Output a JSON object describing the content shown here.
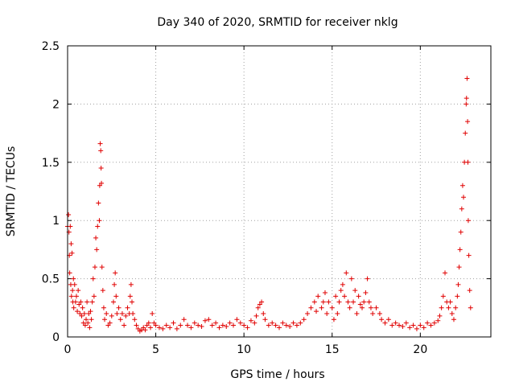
{
  "chart_data": {
    "type": "scatter",
    "title": "Day 340 of 2020, SRMTID for receiver nklg",
    "xlabel": "GPS time / hours",
    "ylabel": "SRMTID / TECUs",
    "xlim": [
      0,
      24
    ],
    "ylim": [
      0,
      2.5
    ],
    "xticks": [
      0,
      5,
      10,
      15,
      20
    ],
    "xtick_labels": [
      "0",
      "5",
      "10",
      "15",
      "20"
    ],
    "yticks": [
      0,
      0.5,
      1,
      1.5,
      2,
      2.5
    ],
    "ytick_labels": [
      "0",
      "0.5",
      "1",
      "1.5",
      "2",
      "2.5"
    ],
    "grid": true,
    "marker": "+",
    "series": [
      {
        "name": "SRMTID",
        "color": "#e00000",
        "points": [
          [
            0.0,
            0.95
          ],
          [
            0.05,
            1.05
          ],
          [
            0.08,
            0.9
          ],
          [
            0.1,
            0.7
          ],
          [
            0.12,
            0.55
          ],
          [
            0.15,
            0.95
          ],
          [
            0.18,
            0.45
          ],
          [
            0.2,
            0.8
          ],
          [
            0.22,
            0.35
          ],
          [
            0.25,
            0.72
          ],
          [
            0.28,
            0.4
          ],
          [
            0.3,
            0.3
          ],
          [
            0.33,
            0.5
          ],
          [
            0.35,
            0.25
          ],
          [
            0.4,
            0.45
          ],
          [
            0.45,
            0.3
          ],
          [
            0.5,
            0.35
          ],
          [
            0.55,
            0.22
          ],
          [
            0.6,
            0.4
          ],
          [
            0.65,
            0.28
          ],
          [
            0.7,
            0.2
          ],
          [
            0.75,
            0.3
          ],
          [
            0.8,
            0.18
          ],
          [
            0.85,
            0.25
          ],
          [
            0.9,
            0.12
          ],
          [
            0.95,
            0.2
          ],
          [
            1.0,
            0.1
          ],
          [
            1.05,
            0.15
          ],
          [
            1.1,
            0.3
          ],
          [
            1.15,
            0.12
          ],
          [
            1.2,
            0.2
          ],
          [
            1.25,
            0.08
          ],
          [
            1.3,
            0.22
          ],
          [
            1.35,
            0.15
          ],
          [
            1.4,
            0.3
          ],
          [
            1.45,
            0.5
          ],
          [
            1.5,
            0.35
          ],
          [
            1.55,
            0.6
          ],
          [
            1.6,
            0.85
          ],
          [
            1.65,
            0.75
          ],
          [
            1.7,
            0.95
          ],
          [
            1.75,
            1.15
          ],
          [
            1.8,
            1.0
          ],
          [
            1.82,
            1.3
          ],
          [
            1.85,
            1.66
          ],
          [
            1.88,
            1.6
          ],
          [
            1.9,
            1.45
          ],
          [
            1.92,
            1.32
          ],
          [
            1.95,
            0.6
          ],
          [
            2.0,
            0.4
          ],
          [
            2.05,
            0.25
          ],
          [
            2.1,
            0.15
          ],
          [
            2.2,
            0.2
          ],
          [
            2.3,
            0.1
          ],
          [
            2.4,
            0.12
          ],
          [
            2.5,
            0.18
          ],
          [
            2.6,
            0.3
          ],
          [
            2.65,
            0.45
          ],
          [
            2.7,
            0.55
          ],
          [
            2.75,
            0.35
          ],
          [
            2.8,
            0.2
          ],
          [
            2.9,
            0.25
          ],
          [
            3.0,
            0.15
          ],
          [
            3.1,
            0.2
          ],
          [
            3.2,
            0.1
          ],
          [
            3.3,
            0.18
          ],
          [
            3.4,
            0.25
          ],
          [
            3.5,
            0.2
          ],
          [
            3.55,
            0.35
          ],
          [
            3.6,
            0.45
          ],
          [
            3.65,
            0.3
          ],
          [
            3.7,
            0.2
          ],
          [
            3.8,
            0.15
          ],
          [
            3.9,
            0.1
          ],
          [
            4.0,
            0.07
          ],
          [
            4.1,
            0.05
          ],
          [
            4.2,
            0.06
          ],
          [
            4.3,
            0.08
          ],
          [
            4.4,
            0.06
          ],
          [
            4.5,
            0.1
          ],
          [
            4.6,
            0.12
          ],
          [
            4.7,
            0.08
          ],
          [
            4.8,
            0.2
          ],
          [
            4.9,
            0.12
          ],
          [
            5.0,
            0.1
          ],
          [
            5.2,
            0.08
          ],
          [
            5.4,
            0.07
          ],
          [
            5.6,
            0.1
          ],
          [
            5.8,
            0.08
          ],
          [
            6.0,
            0.12
          ],
          [
            6.2,
            0.07
          ],
          [
            6.4,
            0.1
          ],
          [
            6.6,
            0.15
          ],
          [
            6.8,
            0.1
          ],
          [
            7.0,
            0.08
          ],
          [
            7.2,
            0.12
          ],
          [
            7.4,
            0.1
          ],
          [
            7.6,
            0.09
          ],
          [
            7.8,
            0.14
          ],
          [
            8.0,
            0.15
          ],
          [
            8.2,
            0.1
          ],
          [
            8.4,
            0.12
          ],
          [
            8.6,
            0.08
          ],
          [
            8.8,
            0.1
          ],
          [
            9.0,
            0.09
          ],
          [
            9.2,
            0.12
          ],
          [
            9.4,
            0.1
          ],
          [
            9.6,
            0.15
          ],
          [
            9.8,
            0.12
          ],
          [
            10.0,
            0.1
          ],
          [
            10.2,
            0.08
          ],
          [
            10.4,
            0.14
          ],
          [
            10.6,
            0.12
          ],
          [
            10.7,
            0.18
          ],
          [
            10.8,
            0.25
          ],
          [
            10.9,
            0.28
          ],
          [
            11.0,
            0.3
          ],
          [
            11.1,
            0.2
          ],
          [
            11.2,
            0.15
          ],
          [
            11.4,
            0.1
          ],
          [
            11.6,
            0.12
          ],
          [
            11.8,
            0.1
          ],
          [
            12.0,
            0.08
          ],
          [
            12.2,
            0.12
          ],
          [
            12.4,
            0.1
          ],
          [
            12.6,
            0.09
          ],
          [
            12.8,
            0.12
          ],
          [
            13.0,
            0.1
          ],
          [
            13.2,
            0.12
          ],
          [
            13.4,
            0.15
          ],
          [
            13.6,
            0.2
          ],
          [
            13.8,
            0.25
          ],
          [
            14.0,
            0.3
          ],
          [
            14.1,
            0.22
          ],
          [
            14.2,
            0.35
          ],
          [
            14.4,
            0.25
          ],
          [
            14.5,
            0.3
          ],
          [
            14.6,
            0.38
          ],
          [
            14.7,
            0.2
          ],
          [
            14.8,
            0.3
          ],
          [
            15.0,
            0.25
          ],
          [
            15.1,
            0.15
          ],
          [
            15.2,
            0.35
          ],
          [
            15.3,
            0.2
          ],
          [
            15.4,
            0.3
          ],
          [
            15.5,
            0.4
          ],
          [
            15.6,
            0.45
          ],
          [
            15.7,
            0.35
          ],
          [
            15.8,
            0.55
          ],
          [
            15.9,
            0.3
          ],
          [
            16.0,
            0.25
          ],
          [
            16.1,
            0.5
          ],
          [
            16.2,
            0.3
          ],
          [
            16.3,
            0.4
          ],
          [
            16.4,
            0.2
          ],
          [
            16.5,
            0.35
          ],
          [
            16.6,
            0.28
          ],
          [
            16.7,
            0.25
          ],
          [
            16.8,
            0.3
          ],
          [
            16.9,
            0.38
          ],
          [
            17.0,
            0.5
          ],
          [
            17.1,
            0.3
          ],
          [
            17.2,
            0.25
          ],
          [
            17.3,
            0.2
          ],
          [
            17.5,
            0.25
          ],
          [
            17.7,
            0.2
          ],
          [
            17.8,
            0.15
          ],
          [
            18.0,
            0.12
          ],
          [
            18.2,
            0.15
          ],
          [
            18.4,
            0.1
          ],
          [
            18.6,
            0.12
          ],
          [
            18.8,
            0.1
          ],
          [
            19.0,
            0.09
          ],
          [
            19.2,
            0.12
          ],
          [
            19.4,
            0.08
          ],
          [
            19.6,
            0.1
          ],
          [
            19.8,
            0.07
          ],
          [
            20.0,
            0.1
          ],
          [
            20.2,
            0.08
          ],
          [
            20.4,
            0.12
          ],
          [
            20.6,
            0.1
          ],
          [
            20.8,
            0.12
          ],
          [
            21.0,
            0.14
          ],
          [
            21.1,
            0.18
          ],
          [
            21.2,
            0.25
          ],
          [
            21.3,
            0.35
          ],
          [
            21.4,
            0.55
          ],
          [
            21.5,
            0.3
          ],
          [
            21.6,
            0.25
          ],
          [
            21.7,
            0.3
          ],
          [
            21.8,
            0.2
          ],
          [
            21.9,
            0.15
          ],
          [
            22.0,
            0.25
          ],
          [
            22.1,
            0.35
          ],
          [
            22.15,
            0.45
          ],
          [
            22.2,
            0.6
          ],
          [
            22.25,
            0.75
          ],
          [
            22.3,
            0.9
          ],
          [
            22.35,
            1.1
          ],
          [
            22.4,
            1.3
          ],
          [
            22.45,
            1.2
          ],
          [
            22.5,
            1.5
          ],
          [
            22.55,
            1.75
          ],
          [
            22.6,
            2.0
          ],
          [
            22.62,
            2.05
          ],
          [
            22.65,
            2.22
          ],
          [
            22.68,
            1.85
          ],
          [
            22.7,
            1.5
          ],
          [
            22.72,
            1.0
          ],
          [
            22.75,
            0.7
          ],
          [
            22.8,
            0.4
          ],
          [
            22.85,
            0.25
          ]
        ]
      }
    ]
  }
}
